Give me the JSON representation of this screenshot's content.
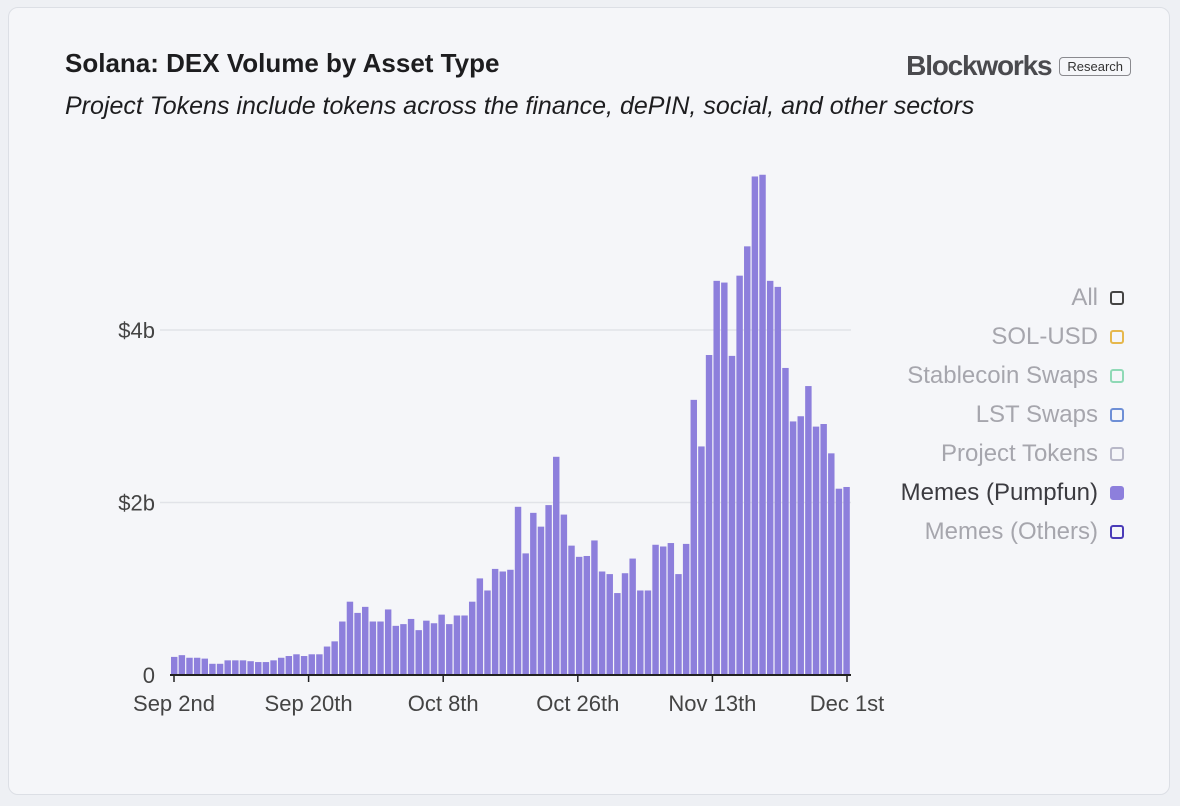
{
  "header": {
    "title": "Solana: DEX Volume by Asset Type",
    "subtitle": "Project Tokens include tokens across the finance, dePIN, social, and other sectors"
  },
  "brand": {
    "name": "Blockworks",
    "badge": "Research"
  },
  "legend": [
    {
      "label": "All",
      "color": "#444444",
      "active": false,
      "filled": false
    },
    {
      "label": "SOL-USD",
      "color": "#e6b84d",
      "active": false,
      "filled": false
    },
    {
      "label": "Stablecoin Swaps",
      "color": "#8fd9b6",
      "active": false,
      "filled": false
    },
    {
      "label": "LST Swaps",
      "color": "#6e8fd6",
      "active": false,
      "filled": false
    },
    {
      "label": "Project Tokens",
      "color": "#b8b8c8",
      "active": false,
      "filled": false
    },
    {
      "label": "Memes (Pumpfun)",
      "color": "#8d7fdc",
      "active": true,
      "filled": true
    },
    {
      "label": "Memes (Others)",
      "color": "#4a3bb8",
      "active": false,
      "filled": false
    }
  ],
  "chart_data": {
    "type": "bar",
    "series_name": "Memes (Pumpfun)",
    "bar_color": "#8d7fdc",
    "x_tick_labels": [
      "Sep 2nd",
      "Sep 20th",
      "Oct 8th",
      "Oct 26th",
      "Nov 13th",
      "Dec 1st"
    ],
    "y_tick_labels": [
      "0",
      "$2b",
      "$4b"
    ],
    "y_ticks": [
      0,
      2,
      4
    ],
    "ylim": [
      0,
      6
    ],
    "y_unit": "billion USD",
    "x_start": "Sep 2nd",
    "x_end": "Dec 2nd",
    "values": [
      0.21,
      0.23,
      0.2,
      0.2,
      0.19,
      0.13,
      0.13,
      0.17,
      0.17,
      0.17,
      0.16,
      0.15,
      0.15,
      0.17,
      0.2,
      0.22,
      0.24,
      0.22,
      0.24,
      0.24,
      0.33,
      0.39,
      0.62,
      0.85,
      0.72,
      0.79,
      0.62,
      0.62,
      0.76,
      0.57,
      0.59,
      0.65,
      0.52,
      0.63,
      0.6,
      0.7,
      0.59,
      0.69,
      0.69,
      0.85,
      1.12,
      0.98,
      1.23,
      1.2,
      1.22,
      1.95,
      1.41,
      1.88,
      1.72,
      1.97,
      2.53,
      1.86,
      1.5,
      1.37,
      1.38,
      1.56,
      1.2,
      1.17,
      0.95,
      1.18,
      1.35,
      0.98,
      0.98,
      1.51,
      1.49,
      1.53,
      1.17,
      1.52,
      3.19,
      2.65,
      3.71,
      4.57,
      4.55,
      3.7,
      4.63,
      4.97,
      5.78,
      5.8,
      4.57,
      4.5,
      3.56,
      2.94,
      3.0,
      3.35,
      2.88,
      2.91,
      2.57,
      2.16,
      2.18
    ]
  }
}
